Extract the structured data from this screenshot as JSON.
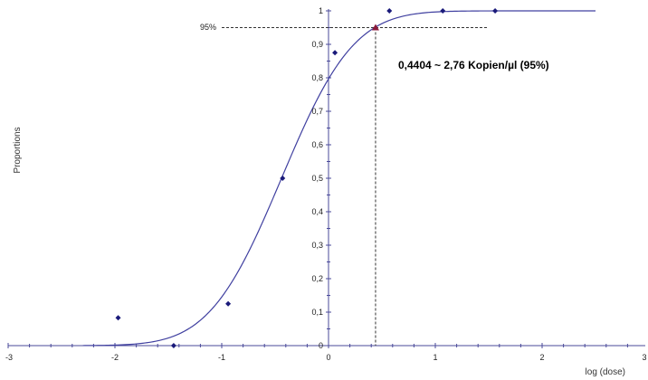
{
  "chart_data": {
    "type": "scatter",
    "xlabel": "log (dose)",
    "ylabel": "Proportions",
    "xlim": [
      -3,
      3
    ],
    "ylim": [
      0,
      1
    ],
    "x_ticks": [
      "-3",
      "-2",
      "-1",
      "0",
      "1",
      "2",
      "3"
    ],
    "x_tick_values": [
      -3,
      -2,
      -1,
      0,
      1,
      2,
      3
    ],
    "y_ticks": [
      "0",
      "0,1",
      "0,2",
      "0,3",
      "0,4",
      "0,5",
      "0,6",
      "0,7",
      "0,8",
      "0,9",
      "1"
    ],
    "y_tick_values": [
      0,
      0.1,
      0.2,
      0.3,
      0.4,
      0.5,
      0.6,
      0.7,
      0.8,
      0.9,
      1
    ],
    "series": [
      {
        "type": "scatter",
        "x": [
          -1.97,
          -1.45,
          -0.94,
          -0.43,
          0.06,
          0.57,
          1.07,
          1.56
        ],
        "y": [
          0.083,
          0.0,
          0.125,
          0.5,
          0.875,
          1.0,
          1.0,
          1.0
        ],
        "color": "#1a1a7a"
      },
      {
        "type": "line",
        "curve": "probit",
        "mu": -0.44,
        "sigma": 0.53,
        "x_range": [
          -2.3,
          2.5
        ],
        "color": "#4040a0"
      }
    ],
    "reference": {
      "x": 0.4404,
      "y": 0.95,
      "y_label": "95%",
      "marker_color": "#8b1a3a",
      "line_color": "#333333"
    },
    "annotations": [
      {
        "text": "0,4404 ~ 2,76 Kopien/µl (95%)"
      }
    ],
    "grid": false
  }
}
